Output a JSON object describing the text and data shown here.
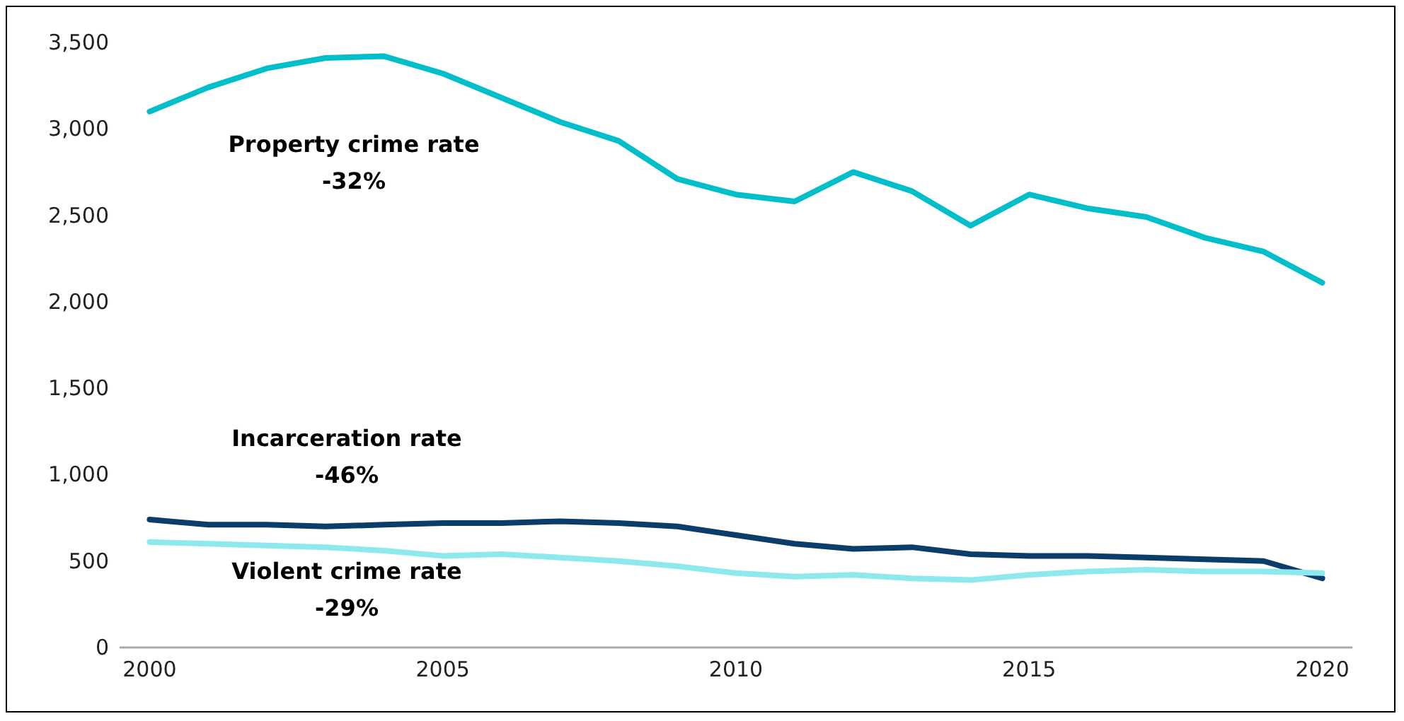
{
  "chart_data": {
    "type": "line",
    "x": [
      2000,
      2001,
      2002,
      2003,
      2004,
      2005,
      2006,
      2007,
      2008,
      2009,
      2010,
      2011,
      2012,
      2013,
      2014,
      2015,
      2016,
      2017,
      2018,
      2019,
      2020
    ],
    "series": [
      {
        "color": "#00bfca",
        "values": [
          3100,
          3240,
          3350,
          3410,
          3420,
          3320,
          3180,
          3040,
          2930,
          2710,
          2620,
          2580,
          2750,
          2640,
          2440,
          2620,
          2540,
          2490,
          2370,
          2290,
          2110
        ]
      },
      {
        "color": "#0b3c6a",
        "values": [
          740,
          710,
          710,
          700,
          710,
          720,
          720,
          730,
          720,
          700,
          650,
          600,
          570,
          580,
          540,
          530,
          530,
          520,
          510,
          500,
          400
        ]
      },
      {
        "color": "#8ee9ee",
        "values": [
          610,
          600,
          590,
          580,
          560,
          530,
          540,
          520,
          500,
          470,
          430,
          410,
          420,
          400,
          390,
          420,
          440,
          450,
          440,
          440,
          430
        ]
      }
    ],
    "xlim": [
      1999.5,
      2020.5
    ],
    "xticks": [
      2000,
      2005,
      2010,
      2015,
      2020
    ],
    "ylim": [
      0,
      3500
    ],
    "yticks": [
      {
        "value": 0,
        "label": "0"
      },
      {
        "value": 500,
        "label": "500"
      },
      {
        "value": 1000,
        "label": "1,000"
      },
      {
        "value": 1500,
        "label": "1,500"
      },
      {
        "value": 2000,
        "label": "2,000"
      },
      {
        "value": 2500,
        "label": "2,500"
      },
      {
        "value": 3000,
        "label": "3,000"
      },
      {
        "value": 3500,
        "label": "3,500"
      }
    ],
    "grid": false,
    "marker": "none",
    "line_style": "solid",
    "annotations": [
      "Property crime rate\n-32%",
      "Incarceration rate\n-46%",
      "Violent crime rate\n-29%"
    ]
  }
}
